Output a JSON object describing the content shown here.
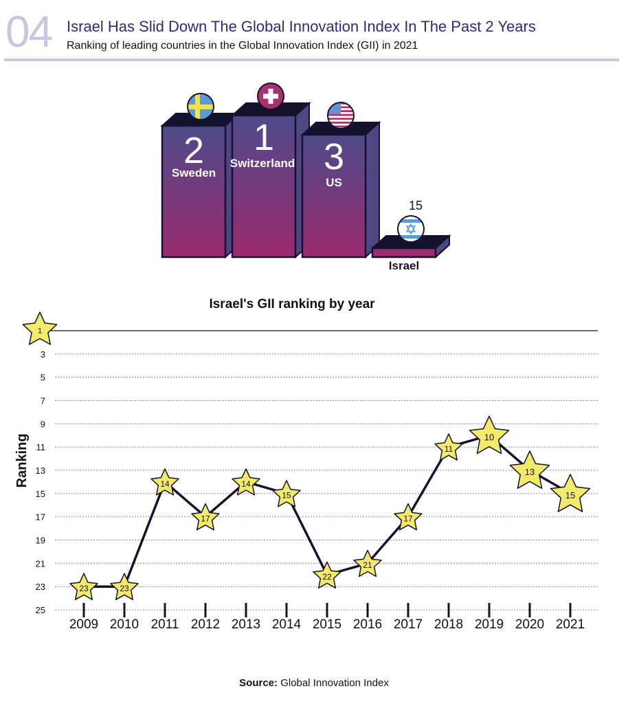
{
  "header": {
    "number": "04",
    "title": "Israel Has Slid Down The Global Innovation Index In The Past 2 Years",
    "subtitle": "Ranking of leading countries in the Global Innovation Index (GII) in 2021"
  },
  "podium": [
    {
      "country": "Sweden",
      "rank": "2",
      "flag": "sweden-flag-icon"
    },
    {
      "country": "Switzerland",
      "rank": "1",
      "flag": "switzerland-flag-icon"
    },
    {
      "country": "US",
      "rank": "3",
      "flag": "us-flag-icon"
    },
    {
      "country": "Israel",
      "rank": "15",
      "flag": "israel-flag-icon"
    }
  ],
  "colors": {
    "bar_top": "#4e4a8a",
    "bar_bottom": "#9b2a6e",
    "bar_side": "#4f4783",
    "bar_cap": "#14122e",
    "star": "#f3ea6a",
    "line": "#14122e"
  },
  "chart_data": {
    "type": "line",
    "title": "Israel's GII ranking by year",
    "xlabel": "",
    "ylabel": "Ranking",
    "x": [
      "2009",
      "2010",
      "2011",
      "2012",
      "2013",
      "2014",
      "2015",
      "2016",
      "2017",
      "2018",
      "2019",
      "2020",
      "2021"
    ],
    "values": [
      23,
      23,
      14,
      17,
      14,
      15,
      22,
      21,
      17,
      11,
      10,
      13,
      15
    ],
    "yticks": [
      "1",
      "3",
      "5",
      "7",
      "9",
      "11",
      "13",
      "15",
      "17",
      "19",
      "21",
      "23",
      "25"
    ],
    "ylim": [
      25,
      1
    ],
    "grid": true,
    "inverted_y": true
  },
  "source": {
    "label": "Source:",
    "text": "Global Innovation Index"
  }
}
